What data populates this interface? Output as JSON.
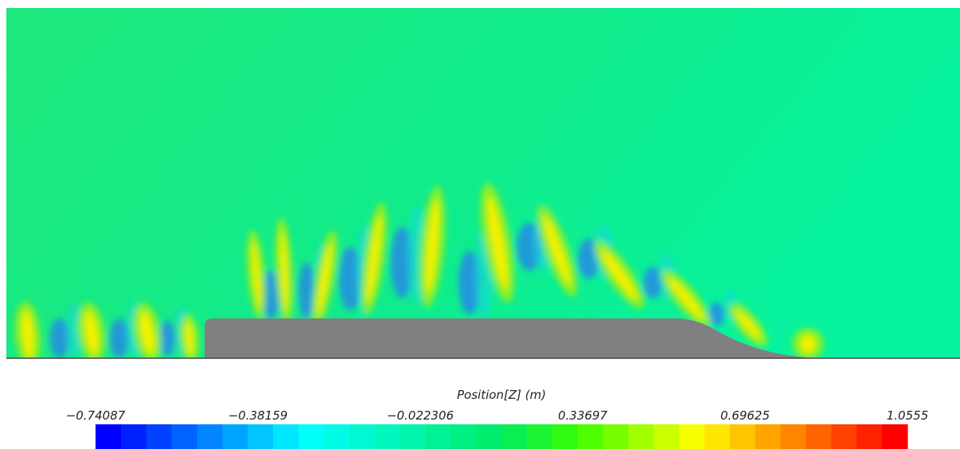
{
  "colorbar": {
    "title": "Position[Z] (m)",
    "ticks": [
      "−0.74087",
      "−0.38159",
      "−0.022306",
      "0.33697",
      "0.69625",
      "1.0555"
    ]
  }
}
